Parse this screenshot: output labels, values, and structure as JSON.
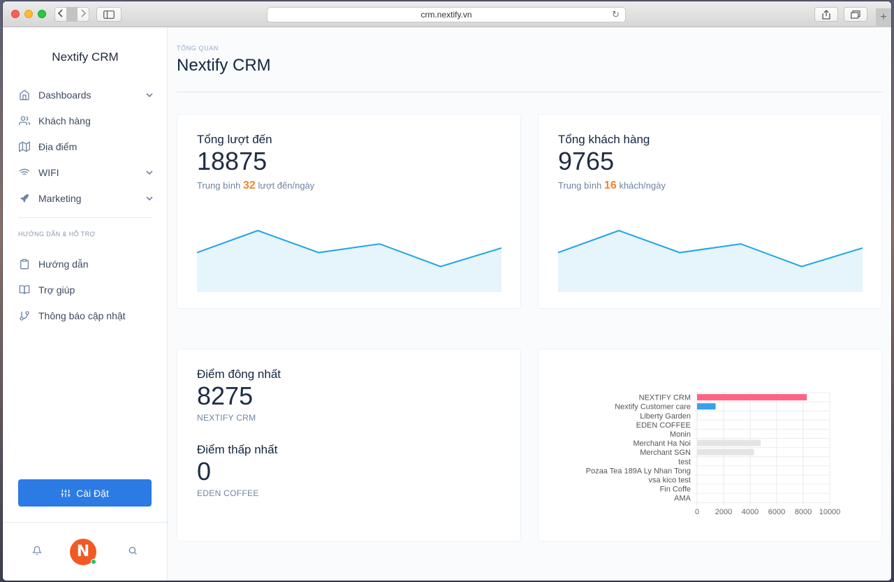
{
  "browser": {
    "url": "crm.nextify.vn"
  },
  "sidebar": {
    "brand": "Nextify CRM",
    "menu": [
      {
        "label": "Dashboards",
        "icon": "home-icon",
        "has_chevron": true
      },
      {
        "label": "Khách hàng",
        "icon": "users-icon",
        "has_chevron": false
      },
      {
        "label": "Địa điểm",
        "icon": "map-icon",
        "has_chevron": false
      },
      {
        "label": "WIFI",
        "icon": "wifi-icon",
        "has_chevron": true
      },
      {
        "label": "Marketing",
        "icon": "rocket-icon",
        "has_chevron": true
      }
    ],
    "section_label": "HƯỚNG DẪN & HỖ TRỢ",
    "support_menu": [
      {
        "label": "Hướng dẫn",
        "icon": "clipboard-icon"
      },
      {
        "label": "Trợ giúp",
        "icon": "book-icon"
      },
      {
        "label": "Thông báo cập nhật",
        "icon": "git-branch-icon"
      }
    ],
    "settings_label": "Cài Đặt",
    "avatar_letter": "N"
  },
  "header": {
    "overline": "TỔNG QUAN",
    "title": "Nextify CRM"
  },
  "cards": {
    "visits": {
      "title": "Tổng lượt đến",
      "value": "18875",
      "sub_prefix": "Trung bình",
      "sub_highlight": "32",
      "sub_suffix": "lượt đến/ngày",
      "trend": [
        0.62,
        1.0,
        0.62,
        0.77,
        0.38,
        0.7
      ]
    },
    "customers": {
      "title": "Tổng khách hàng",
      "value": "9765",
      "sub_prefix": "Trung bình",
      "sub_highlight": "16",
      "sub_suffix": "khách/ngày",
      "trend": [
        0.62,
        1.0,
        0.62,
        0.77,
        0.38,
        0.7
      ]
    },
    "locations": {
      "max_title": "Điểm đông nhất",
      "max_value": "8275",
      "max_name": "NEXTIFY CRM",
      "min_title": "Điểm thấp nhất",
      "min_value": "0",
      "min_name": "EDEN COFFEE"
    }
  },
  "chart_data": {
    "type": "bar",
    "orientation": "horizontal",
    "categories": [
      "NEXTIFY CRM",
      "Nextify Customer care",
      "Liberty Garden",
      "EDEN COFFEE",
      "Monin",
      "Merchant Ha Noi",
      "Merchant SGN",
      "test",
      "Pozaa Tea 189A Ly Nhan Tong",
      "vsa kico test",
      "Fin Coffe",
      "AMA"
    ],
    "values": [
      8275,
      1400,
      30,
      0,
      0,
      4800,
      4300,
      0,
      0,
      0,
      0,
      0
    ],
    "colors": [
      "#ff6384",
      "#36a2eb",
      "#ffce56",
      "#4bc0c0",
      "#9966ff",
      "#e4e4e4",
      "#e4e4e4",
      "#e4e4e4",
      "#e4e4e4",
      "#e4e4e4",
      "#e4e4e4",
      "#e4e4e4"
    ],
    "xlim": [
      0,
      10000
    ],
    "xticks": [
      "0",
      "2000",
      "4000",
      "6000",
      "8000",
      "10000"
    ],
    "grid": true
  }
}
